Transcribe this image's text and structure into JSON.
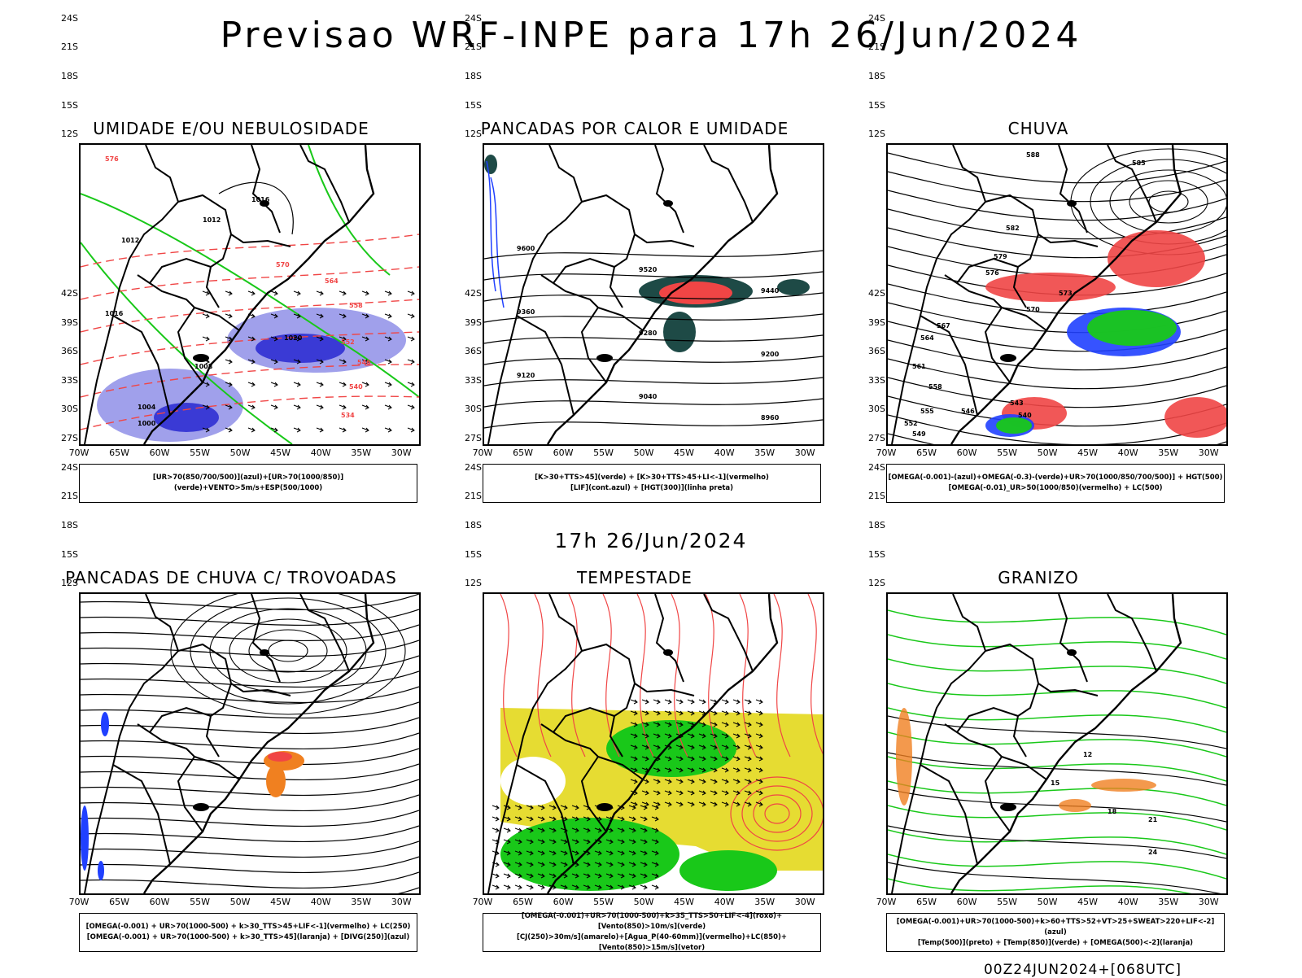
{
  "header": {
    "title": "Previsao WRF-INPE  para 17h 26/Jun/2024",
    "mid_title": "17h 26/Jun/2024",
    "footer_id": "00Z24JUN2024+[068UTC]"
  },
  "axes": {
    "lat_ticks": [
      "12S",
      "15S",
      "18S",
      "21S",
      "24S",
      "27S",
      "30S",
      "33S",
      "36S",
      "39S",
      "42S"
    ],
    "lon_ticks": [
      "70W",
      "65W",
      "60W",
      "55W",
      "50W",
      "45W",
      "40W",
      "35W",
      "30W"
    ]
  },
  "colors": {
    "blue_shade": "#8f8fe8",
    "dark_blue": "#2020d0",
    "green": "#19c819",
    "red": "#f04545",
    "orange": "#f08020",
    "yellow": "#e6dc32",
    "dark_teal": "#1e4a46",
    "blue_contour": "#2040ff"
  },
  "panels": [
    {
      "id": "umidade",
      "title": "UMIDADE E/OU NEBULOSIDADE",
      "legend": [
        "[UR>70(850/700/500)](azul)+[UR>70(1000/850)](verde)+VENTO>5m/s+ESP(500/1000)"
      ],
      "contour_labels": [
        "1016",
        "1012",
        "1012",
        "1016",
        "1020",
        "1008",
        "1004",
        "1000",
        "576",
        "570",
        "564",
        "558",
        "552",
        "546",
        "540",
        "534"
      ]
    },
    {
      "id": "pancadas_calor",
      "title": "PANCADAS POR CALOR E UMIDADE",
      "legend": [
        "[K>30+TTS>45](verde) + [K>30+TTS>45+LI<-1](vermelho)",
        "[LIF](cont.azul) + [HGT(300)](linha preta)"
      ],
      "contour_labels": [
        "9600",
        "9520",
        "9440",
        "9360",
        "9280",
        "9200",
        "9120",
        "9040",
        "8960"
      ]
    },
    {
      "id": "chuva",
      "title": "CHUVA",
      "legend": [
        "[OMEGA(-0.001)-(azul)+OMEGA(-0.3)-(verde)+UR>70(1000/850/700/500)] + HGT(500)",
        "[OMEGA(-0.01)_UR>50(1000/850)(vermelho) + LC(500)"
      ],
      "contour_labels": [
        "588",
        "585",
        "582",
        "579",
        "576",
        "573",
        "570",
        "567",
        "564",
        "561",
        "558",
        "555",
        "552",
        "549",
        "546",
        "543",
        "540"
      ]
    },
    {
      "id": "pancadas_trovoadas",
      "title": "PANCADAS DE CHUVA C/ TROVOADAS",
      "legend": [
        "[OMEGA(-0.001) + UR>70(1000-500) + k>30_TTS>45+LIF<-1](vermelho) + LC(250)",
        "[OMEGA(-0.001) + UR>70(1000-500) + k>30_TTS>45](laranja) + [DIVG(250)](azul)"
      ],
      "contour_labels": []
    },
    {
      "id": "tempestade",
      "title": "TEMPESTADE",
      "legend": [
        "[OMEGA(-0.001)+UR>70(1000-500)+k>35_TTS>50+LIF<-4](roxo)+[Vento(850)>10m/s](verde)",
        "[CJ(250)>30m/s](amarelo)+[Agua_P(40-60mm)](vermelho)+LC(850)+[Vento(850)>15m/s](vetor)"
      ],
      "contour_labels": []
    },
    {
      "id": "granizo",
      "title": "GRANIZO",
      "legend": [
        "[OMEGA(-0.001)+UR>70(1000-500)+k>60+TTS>52+VT>25+SWEAT>220+LIF<-2](azul)",
        "[Temp(500)](preto) + [Temp(850)](verde) + [OMEGA(500)<-2](laranja)"
      ],
      "contour_labels": [
        "12",
        "15",
        "18",
        "21",
        "24"
      ]
    }
  ]
}
